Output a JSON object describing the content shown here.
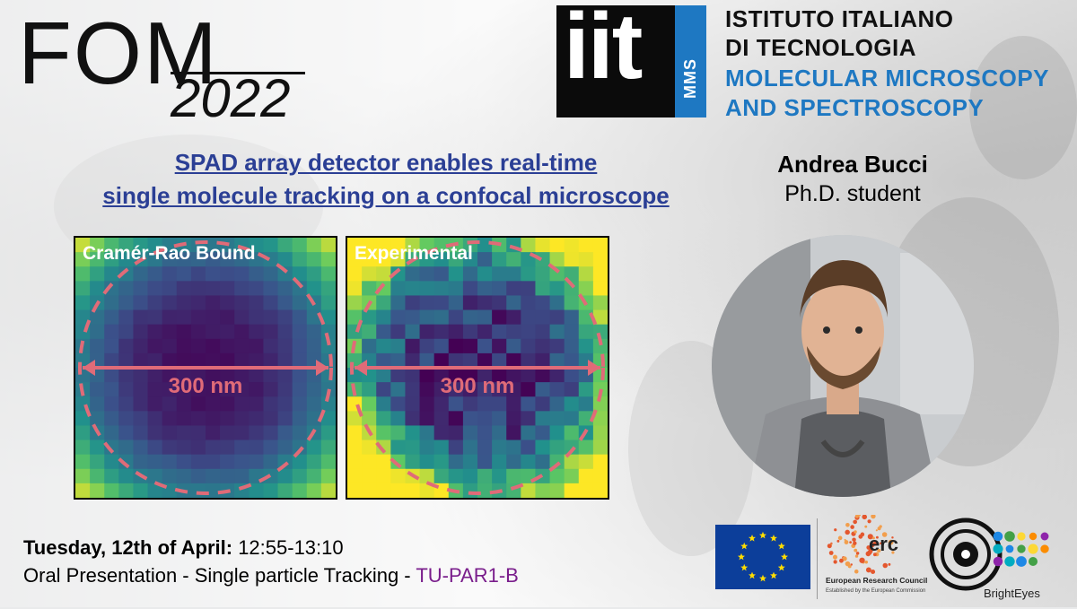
{
  "event": {
    "logo_letters": "FOM",
    "logo_year": "2022"
  },
  "institute": {
    "logo_text": "iit",
    "logo_badge": "MMS",
    "lines": [
      "ISTITUTO ITALIANO",
      "DI TECNOLOGIA",
      "MOLECULAR MICROSCOPY",
      "AND SPECTROSCOPY"
    ],
    "colors": {
      "dark": "#111111",
      "blue": "#1e78c2"
    }
  },
  "talk": {
    "title_line1": "SPAD array detector enables real-time",
    "title_line2": "single molecule tracking on a confocal microscope"
  },
  "presenter": {
    "name": "Andrea Bucci",
    "role": "Ph.D. student"
  },
  "heatmaps": [
    {
      "label": "Cramér-Rao Bound",
      "scale": "300 nm"
    },
    {
      "label": "Experimental",
      "scale": "300 nm"
    }
  ],
  "schedule": {
    "day": "Tuesday, 12th of April:",
    "time": "12:55-13:10",
    "session_prefix": "Oral Presentation - Single particle Tracking - ",
    "session_code": "TU-PAR1-B"
  },
  "sponsors": {
    "erc_abbr": "erc",
    "erc_name": "European Research Council",
    "erc_sub": "Established by the European Commission",
    "brighteyes": "BrightEyes"
  },
  "colors": {
    "title_blue": "#2b3f95",
    "annotation_pink": "#e06b78",
    "session_purple": "#7a1e8c"
  }
}
